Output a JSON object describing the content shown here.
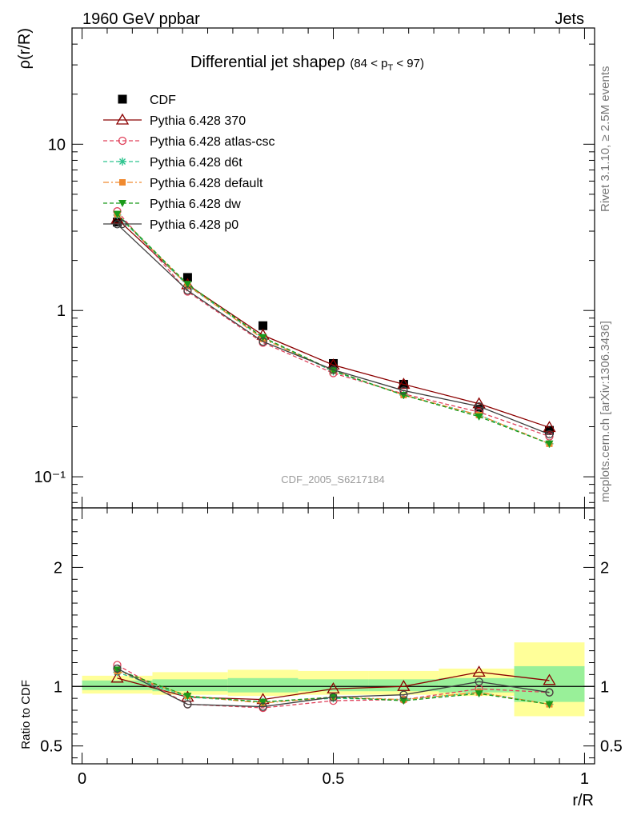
{
  "header": {
    "left": "1960 GeV ppbar",
    "right": "Jets"
  },
  "side_labels": {
    "rivet": "Rivet 3.1.10, ≥ 2.5M events",
    "mcplots": "mcplots.cern.ch [arXiv:1306.3436]"
  },
  "watermark": "CDF_2005_S6217184",
  "chart_data": [
    {
      "type": "line",
      "title": "Differential jet shapeρ",
      "title_suffix_main": "(84 < p",
      "title_suffix_sub": "T",
      "title_suffix_end": " < 97)",
      "ylabel": "ρ(r/R)",
      "yscale": "log",
      "ylim": [
        0.065,
        50
      ],
      "xlim": [
        -0.02,
        1.02
      ],
      "y_tick_labels": [
        "10⁻¹",
        "1",
        "10"
      ],
      "x": [
        0.07,
        0.21,
        0.36,
        0.5,
        0.64,
        0.79,
        0.93
      ],
      "series": [
        {
          "name": "CDF",
          "color": "#000000",
          "marker": "square",
          "style": "none",
          "values": [
            3.4,
            1.58,
            0.81,
            0.48,
            0.36,
            0.255,
            0.19
          ]
        },
        {
          "name": "Pythia 6.428 370",
          "color": "#8b0000",
          "marker": "open-triangle",
          "style": "solid",
          "values": [
            3.55,
            1.43,
            0.71,
            0.47,
            0.36,
            0.275,
            0.198
          ]
        },
        {
          "name": "Pythia 6.428 atlas-csc",
          "color": "#e0405a",
          "marker": "open-circle",
          "style": "dashed",
          "values": [
            3.95,
            1.3,
            0.64,
            0.42,
            0.315,
            0.245,
            0.175
          ]
        },
        {
          "name": "Pythia 6.428 d6t",
          "color": "#2ec48f",
          "marker": "star",
          "style": "dashed",
          "values": [
            3.75,
            1.41,
            0.685,
            0.43,
            0.31,
            0.235,
            0.158
          ]
        },
        {
          "name": "Pythia 6.428 default",
          "color": "#f08a30",
          "marker": "filled-square",
          "style": "dashdot",
          "values": [
            3.8,
            1.42,
            0.675,
            0.435,
            0.31,
            0.235,
            0.158
          ]
        },
        {
          "name": "Pythia 6.428 dw",
          "color": "#1a9a1a",
          "marker": "filled-triangle-down",
          "style": "dashed",
          "values": [
            3.8,
            1.44,
            0.69,
            0.435,
            0.31,
            0.23,
            0.158
          ]
        },
        {
          "name": "Pythia 6.428 p0",
          "color": "#404040",
          "marker": "open-circle",
          "style": "solid",
          "values": [
            3.3,
            1.32,
            0.65,
            0.44,
            0.33,
            0.265,
            0.18
          ]
        }
      ]
    },
    {
      "type": "line",
      "ylabel": "Ratio to CDF",
      "xlabel": "r/R",
      "ylim": [
        0.35,
        2.5
      ],
      "xlim": [
        -0.02,
        1.02
      ],
      "reference_line": 1,
      "y_tick_labels": [
        "0.5",
        "1",
        "2"
      ],
      "x_tick_labels": [
        "0",
        "0.5",
        "1"
      ],
      "bins": [
        [
          0.0,
          0.14
        ],
        [
          0.14,
          0.29
        ],
        [
          0.29,
          0.43
        ],
        [
          0.43,
          0.57
        ],
        [
          0.57,
          0.71
        ],
        [
          0.71,
          0.86
        ],
        [
          0.86,
          1.0
        ]
      ],
      "band_yellow": [
        [
          0.94,
          1.09
        ],
        [
          0.93,
          1.12
        ],
        [
          0.92,
          1.14
        ],
        [
          0.93,
          1.13
        ],
        [
          0.93,
          1.13
        ],
        [
          0.92,
          1.15
        ],
        [
          0.75,
          1.37
        ]
      ],
      "band_green": [
        [
          0.97,
          1.05
        ],
        [
          0.96,
          1.06
        ],
        [
          0.95,
          1.07
        ],
        [
          0.96,
          1.06
        ],
        [
          0.96,
          1.06
        ],
        [
          0.95,
          1.07
        ],
        [
          0.87,
          1.17
        ]
      ],
      "x": [
        0.07,
        0.21,
        0.36,
        0.5,
        0.64,
        0.79,
        0.93
      ],
      "series": [
        {
          "name": "Pythia 6.428 370",
          "color": "#8b0000",
          "marker": "open-triangle",
          "style": "solid",
          "values": [
            1.07,
            0.91,
            0.89,
            0.98,
            1.0,
            1.12,
            1.05
          ]
        },
        {
          "name": "Pythia 6.428 atlas-csc",
          "color": "#e0405a",
          "marker": "open-circle",
          "style": "dashed",
          "values": [
            1.18,
            0.85,
            0.82,
            0.88,
            0.89,
            0.98,
            0.95
          ]
        },
        {
          "name": "Pythia 6.428 d6t",
          "color": "#2ec48f",
          "marker": "star",
          "style": "dashed",
          "values": [
            1.12,
            0.91,
            0.87,
            0.9,
            0.89,
            0.95,
            0.85
          ]
        },
        {
          "name": "Pythia 6.428 default",
          "color": "#f08a30",
          "marker": "filled-square",
          "style": "dashdot",
          "values": [
            1.13,
            0.92,
            0.86,
            0.91,
            0.89,
            0.95,
            0.85
          ]
        },
        {
          "name": "Pythia 6.428 dw",
          "color": "#1a9a1a",
          "marker": "filled-triangle-down",
          "style": "dashed",
          "values": [
            1.14,
            0.92,
            0.87,
            0.91,
            0.88,
            0.94,
            0.85
          ]
        },
        {
          "name": "Pythia 6.428 p0",
          "color": "#404040",
          "marker": "open-circle",
          "style": "solid",
          "values": [
            1.15,
            0.85,
            0.83,
            0.91,
            0.93,
            1.04,
            0.95
          ]
        }
      ]
    }
  ]
}
